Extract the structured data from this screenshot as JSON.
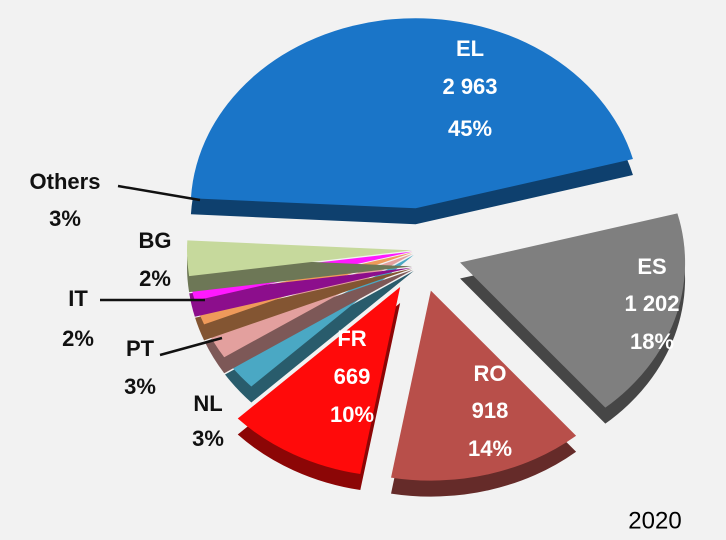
{
  "chart_data": {
    "type": "pie",
    "categories": [
      "EL",
      "ES",
      "RO",
      "FR",
      "NL",
      "PT",
      "IT",
      "BG",
      "Others"
    ],
    "values": [
      45,
      18,
      14,
      10,
      3,
      3,
      2,
      2,
      3
    ],
    "value_labels": [
      "45%",
      "18%",
      "14%",
      "10%",
      "3%",
      "3%",
      "2%",
      "2%",
      "3%"
    ],
    "counts": [
      2963,
      1202,
      918,
      669,
      null,
      null,
      null,
      null,
      null
    ],
    "count_labels": [
      "2 963",
      "1 202",
      "918",
      "669",
      null,
      null,
      null,
      null,
      null
    ],
    "colors": [
      "#1a75c8",
      "#7f7f7f",
      "#b84f4a",
      "#ff0a0a",
      "#4aa8c4",
      "#e3a09e",
      "#ef9a5a",
      "#ff19ff",
      "#c6d99c"
    ],
    "footer": "2020"
  }
}
